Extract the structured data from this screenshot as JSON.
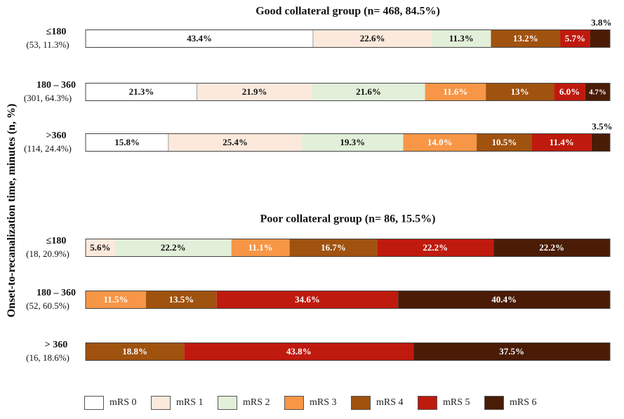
{
  "y_axis_label": "Onset-to-recanalization time, minutes (n, %)",
  "legend": [
    {
      "label": "mRS 0",
      "color": "#ffffff"
    },
    {
      "label": "mRS 1",
      "color": "#fce9dc"
    },
    {
      "label": "mRS 2",
      "color": "#e2efd9"
    },
    {
      "label": "mRS 3",
      "color": "#f79646"
    },
    {
      "label": "mRS 4",
      "color": "#a0520f"
    },
    {
      "label": "mRS 5",
      "color": "#bf1a0e"
    },
    {
      "label": "mRS 6",
      "color": "#4a1c06"
    }
  ],
  "chart_data": [
    {
      "type": "bar",
      "orientation": "horizontal",
      "stacked": "100%",
      "title": "Good collateral group (n= 468, 84.5%)",
      "categories": [
        {
          "label": "≤180",
          "sub": "(53, 11.3%)"
        },
        {
          "label": "180 – 360",
          "sub": "(301, 64.3%)"
        },
        {
          "label": ">360",
          "sub": "(114, 24.4%)"
        }
      ],
      "series": [
        {
          "name": "mRS 0",
          "values": [
            43.4,
            21.3,
            15.8
          ],
          "labels": [
            "43.4%",
            "21.3%",
            "15.8%"
          ]
        },
        {
          "name": "mRS 1",
          "values": [
            22.6,
            21.9,
            25.4
          ],
          "labels": [
            "22.6%",
            "21.9%",
            "25.4%"
          ]
        },
        {
          "name": "mRS 2",
          "values": [
            11.3,
            21.6,
            19.3
          ],
          "labels": [
            "11.3%",
            "21.6%",
            "19.3%"
          ]
        },
        {
          "name": "mRS 3",
          "values": [
            0,
            11.6,
            14.0
          ],
          "labels": [
            "",
            "11.6%",
            "14.0%"
          ]
        },
        {
          "name": "mRS 4",
          "values": [
            13.2,
            13,
            10.5
          ],
          "labels": [
            "13.2%",
            "13%",
            "10.5%"
          ]
        },
        {
          "name": "mRS 5",
          "values": [
            5.7,
            6.0,
            11.4
          ],
          "labels": [
            "5.7%",
            "6.0%",
            "11.4%"
          ]
        },
        {
          "name": "mRS 6",
          "values": [
            3.8,
            4.7,
            3.5
          ],
          "labels": [
            "3.8%",
            "4.7%",
            "3.5%"
          ]
        }
      ]
    },
    {
      "type": "bar",
      "orientation": "horizontal",
      "stacked": "100%",
      "title": "Poor collateral group (n= 86, 15.5%)",
      "categories": [
        {
          "label": "≤180",
          "sub": "(18, 20.9%)"
        },
        {
          "label": "180 – 360",
          "sub": "(52, 60.5%)"
        },
        {
          "label": "> 360",
          "sub": "(16, 18.6%)"
        }
      ],
      "series": [
        {
          "name": "mRS 0",
          "values": [
            0,
            0,
            0
          ],
          "labels": [
            "",
            "",
            ""
          ]
        },
        {
          "name": "mRS 1",
          "values": [
            5.6,
            0,
            0
          ],
          "labels": [
            "5.6%",
            "",
            ""
          ]
        },
        {
          "name": "mRS 2",
          "values": [
            22.2,
            0,
            0
          ],
          "labels": [
            "22.2%",
            "",
            ""
          ]
        },
        {
          "name": "mRS 3",
          "values": [
            11.1,
            11.5,
            0
          ],
          "labels": [
            "11.1%",
            "11.5%",
            ""
          ]
        },
        {
          "name": "mRS 4",
          "values": [
            16.7,
            13.5,
            18.8
          ],
          "labels": [
            "16.7%",
            "13.5%",
            "18.8%"
          ]
        },
        {
          "name": "mRS 5",
          "values": [
            22.2,
            34.6,
            43.8
          ],
          "labels": [
            "22.2%",
            "34.6%",
            "43.8%"
          ]
        },
        {
          "name": "mRS 6",
          "values": [
            22.2,
            40.4,
            37.5
          ],
          "labels": [
            "22.2%",
            "40.4%",
            "37.5%"
          ]
        }
      ]
    }
  ]
}
